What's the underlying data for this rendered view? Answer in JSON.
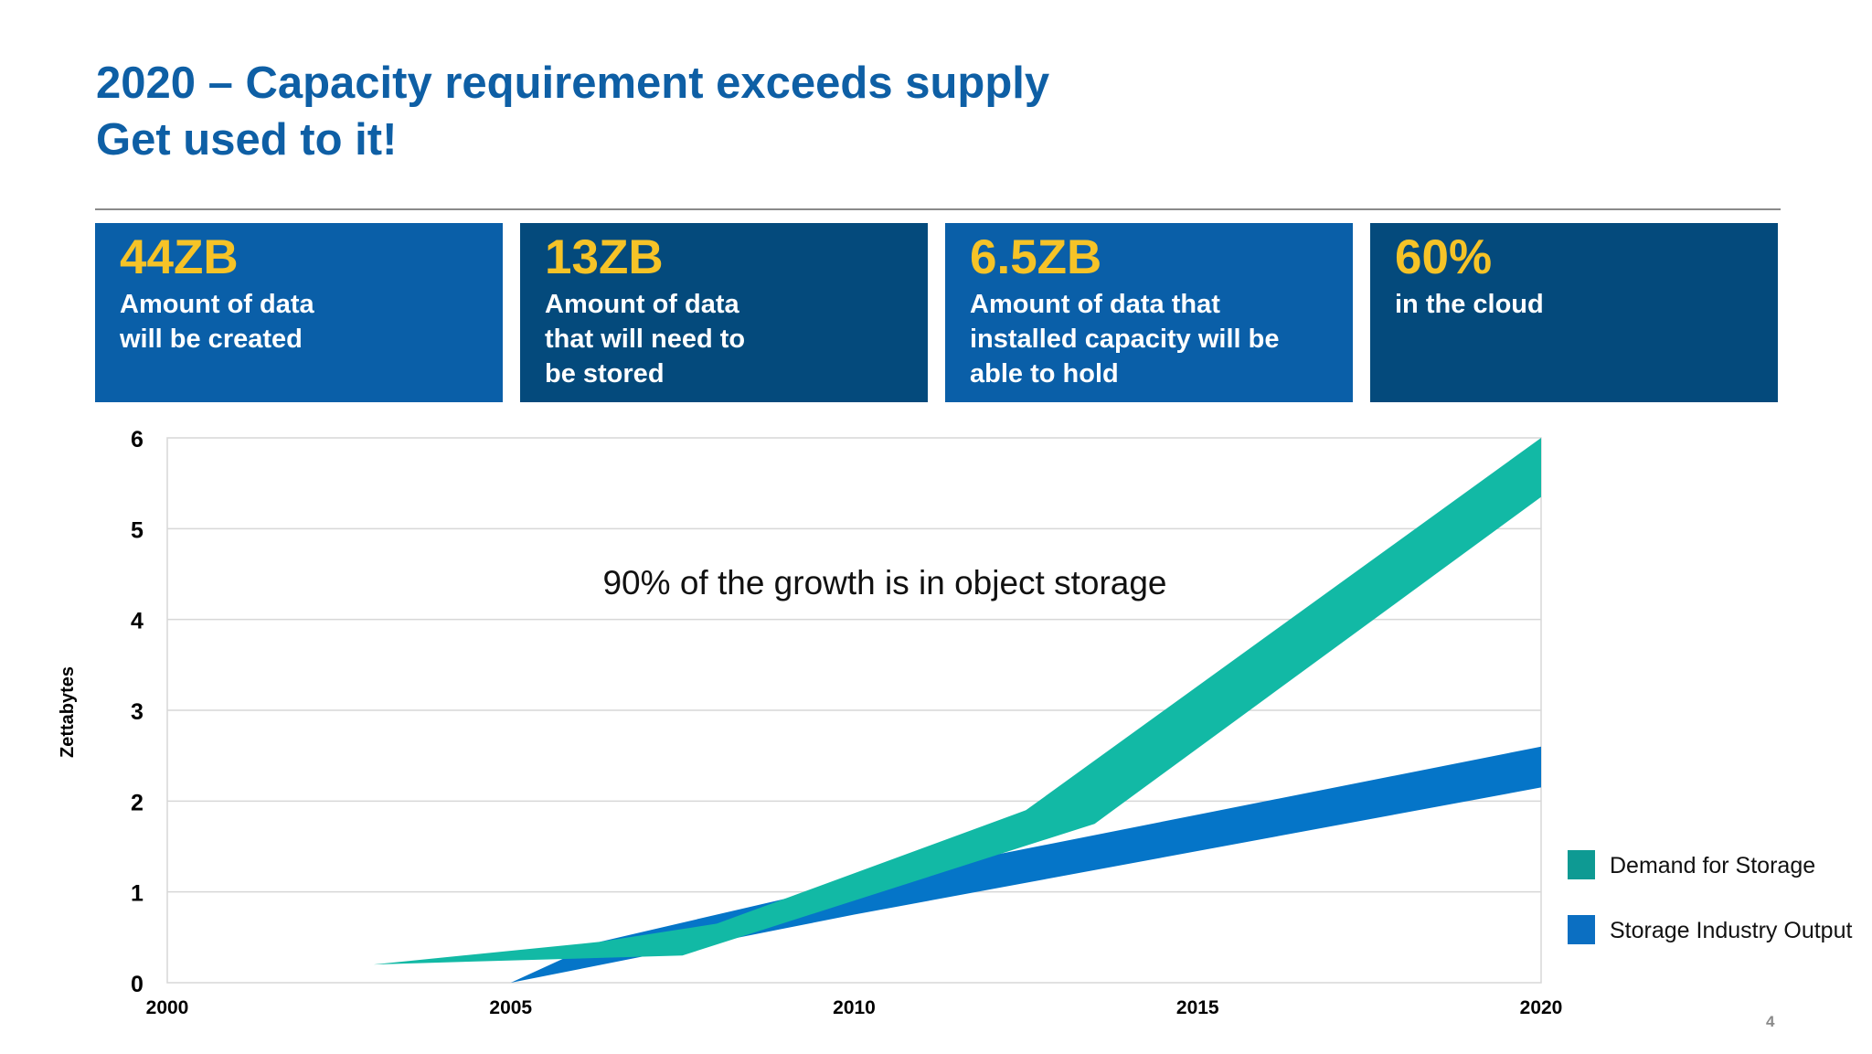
{
  "slide": {
    "title_line1": "2020 – Capacity requirement exceeds supply",
    "title_line2": "Get used to it!",
    "page_number": "4"
  },
  "cards": [
    {
      "value": "44ZB",
      "text": "Amount of data\nwill be created",
      "color": "#0a5fa8"
    },
    {
      "value": "13ZB",
      "text": "Amount of data\nthat will need to\nbe stored",
      "color": "#044a7c"
    },
    {
      "value": "6.5ZB",
      "text": "Amount of data that\ninstalled capacity will be\nable to hold",
      "color": "#0a5fa8"
    },
    {
      "value": "60%",
      "text": "in the cloud",
      "color": "#044a7c"
    }
  ],
  "chart_data": {
    "type": "area",
    "ylabel": "Zettabytes",
    "ylim": [
      0,
      6
    ],
    "yticks": [
      "0",
      "1",
      "2",
      "3",
      "4",
      "5",
      "6"
    ],
    "xlim": [
      2000,
      2020
    ],
    "xticks": [
      "2000",
      "2005",
      "2010",
      "2015",
      "2020"
    ],
    "annotation": "90% of the growth is in object storage",
    "legend_position": "bottom-right",
    "grid": true,
    "series": [
      {
        "name": "Storage Industry Output",
        "color": "#0575c8",
        "legend_color": "#0b6fc2",
        "lower": [
          [
            2000,
            0
          ],
          [
            2005,
            0
          ],
          [
            2010,
            0.75
          ],
          [
            2020,
            2.15
          ]
        ],
        "upper": [
          [
            2000,
            0
          ],
          [
            2005,
            0
          ],
          [
            2006.3,
            0.45
          ],
          [
            2008,
            0.75
          ],
          [
            2010,
            1.1
          ],
          [
            2020,
            2.6
          ]
        ]
      },
      {
        "name": "Demand for Storage",
        "color": "#12b9a5",
        "legend_color": "#0e9a93",
        "lower": [
          [
            2000,
            0
          ],
          [
            2003,
            0.2
          ],
          [
            2007.5,
            0.3
          ],
          [
            2013.5,
            1.75
          ],
          [
            2020,
            5.35
          ]
        ],
        "upper": [
          [
            2000,
            0
          ],
          [
            2003,
            0.2
          ],
          [
            2006.3,
            0.45
          ],
          [
            2008,
            0.65
          ],
          [
            2012.5,
            1.9
          ],
          [
            2020,
            6.0
          ]
        ]
      }
    ]
  }
}
